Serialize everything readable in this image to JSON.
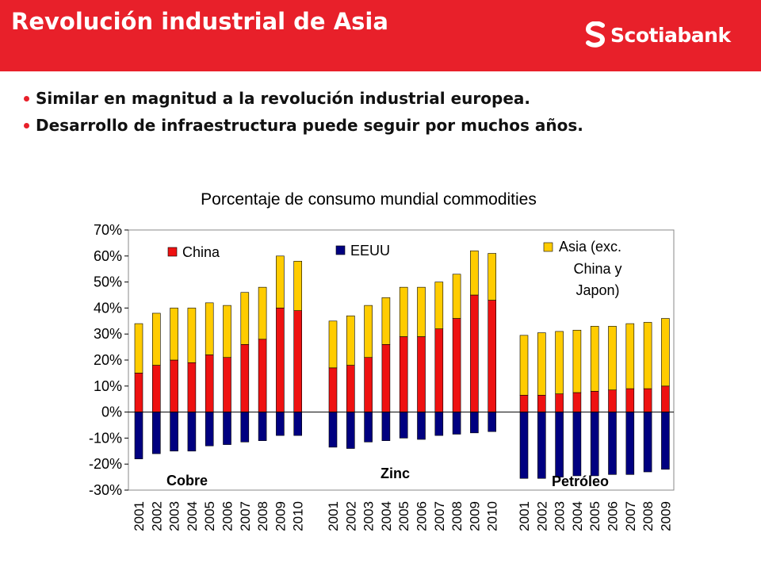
{
  "header": {
    "title": "Revolución industrial de Asia",
    "brand": "Scotiabank",
    "color": "#e8202a"
  },
  "bullets": [
    "Similar en magnitud a la revolución industrial europea.",
    "Desarrollo de infraestructura puede seguir por muchos años."
  ],
  "chart_data": {
    "type": "bar",
    "stacked": true,
    "title": "Porcentaje de consumo mundial commodities",
    "ylim": [
      -0.3,
      0.7
    ],
    "yticks": [
      "70%",
      "60%",
      "50%",
      "40%",
      "30%",
      "20%",
      "10%",
      "0%",
      "-10%",
      "-20%",
      "-30%"
    ],
    "grid": false,
    "legend": [
      {
        "name": "China",
        "color": "#ee1111"
      },
      {
        "name": "EEUU",
        "color": "#000080"
      },
      {
        "name": "Asia (exc. China y Japon)",
        "color": "#ffcc00",
        "lines": [
          "Asia (exc.",
          "China y",
          "Japon)"
        ]
      }
    ],
    "groups": [
      {
        "label": "Cobre",
        "x": [
          "2001",
          "2002",
          "2003",
          "2004",
          "2005",
          "2006",
          "2007",
          "2008",
          "2009",
          "2010"
        ],
        "china": [
          0.15,
          0.18,
          0.2,
          0.19,
          0.22,
          0.21,
          0.26,
          0.28,
          0.4,
          0.39
        ],
        "asia": [
          0.19,
          0.2,
          0.2,
          0.21,
          0.2,
          0.2,
          0.2,
          0.2,
          0.2,
          0.19
        ],
        "eeuu": [
          -0.18,
          -0.16,
          -0.15,
          -0.15,
          -0.13,
          -0.125,
          -0.115,
          -0.11,
          -0.09,
          -0.09
        ]
      },
      {
        "label": "Zinc",
        "x": [
          "2001",
          "2002",
          "2003",
          "2004",
          "2005",
          "2006",
          "2007",
          "2008",
          "2009",
          "2010"
        ],
        "china": [
          0.17,
          0.18,
          0.21,
          0.26,
          0.29,
          0.29,
          0.32,
          0.36,
          0.45,
          0.43
        ],
        "asia": [
          0.18,
          0.19,
          0.2,
          0.18,
          0.19,
          0.19,
          0.18,
          0.17,
          0.17,
          0.18
        ],
        "eeuu": [
          -0.135,
          -0.14,
          -0.115,
          -0.11,
          -0.1,
          -0.105,
          -0.09,
          -0.085,
          -0.08,
          -0.075
        ]
      },
      {
        "label": "Petróleo",
        "x": [
          "2001",
          "2002",
          "2003",
          "2004",
          "2005",
          "2006",
          "2007",
          "2008",
          "2009"
        ],
        "china": [
          0.065,
          0.065,
          0.07,
          0.075,
          0.08,
          0.085,
          0.09,
          0.09,
          0.1
        ],
        "asia": [
          0.23,
          0.24,
          0.24,
          0.24,
          0.25,
          0.245,
          0.25,
          0.255,
          0.26
        ],
        "eeuu": [
          -0.255,
          -0.255,
          -0.25,
          -0.245,
          -0.245,
          -0.24,
          -0.24,
          -0.23,
          -0.22
        ]
      }
    ]
  }
}
